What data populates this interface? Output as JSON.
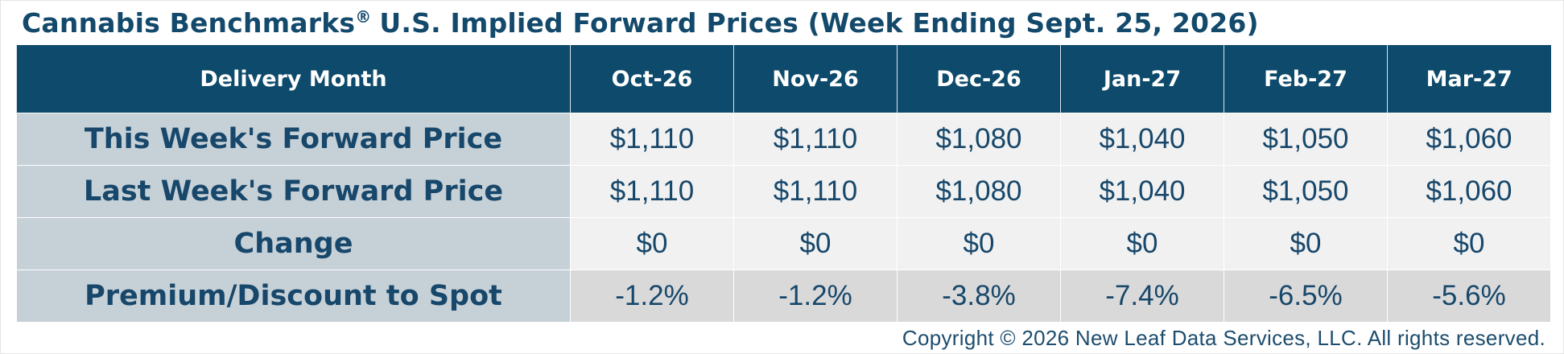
{
  "header": {
    "title_parts": [
      "Cannabis Benchmarks",
      "®",
      "U.S. Implied Forward Prices (Week Ending Sept. 25, 2026)"
    ]
  },
  "table": {
    "columns": [
      "Delivery Month",
      "Oct-26",
      "Nov-26",
      "Dec-26",
      "Jan-27",
      "Feb-27",
      "Mar-27"
    ],
    "rows": [
      [
        "This Week's Forward Price",
        "$1,110",
        "$1,110",
        "$1,080",
        "$1,040",
        "$1,050",
        "$1,060"
      ],
      [
        "Last Week's Forward Price",
        "$1,110",
        "$1,110",
        "$1,080",
        "$1,040",
        "$1,050",
        "$1,060"
      ],
      [
        "Change",
        "$0",
        "$0",
        "$0",
        "$0",
        "$0",
        "$0"
      ],
      [
        "Premium/Discount to Spot",
        "-1.2%",
        "-1.2%",
        "-3.8%",
        "-7.4%",
        "-6.5%",
        "-5.6%"
      ]
    ]
  },
  "footer": {
    "copyright": "Copyright © 2026 New Leaf Data Services, LLC. All rights reserved."
  }
}
